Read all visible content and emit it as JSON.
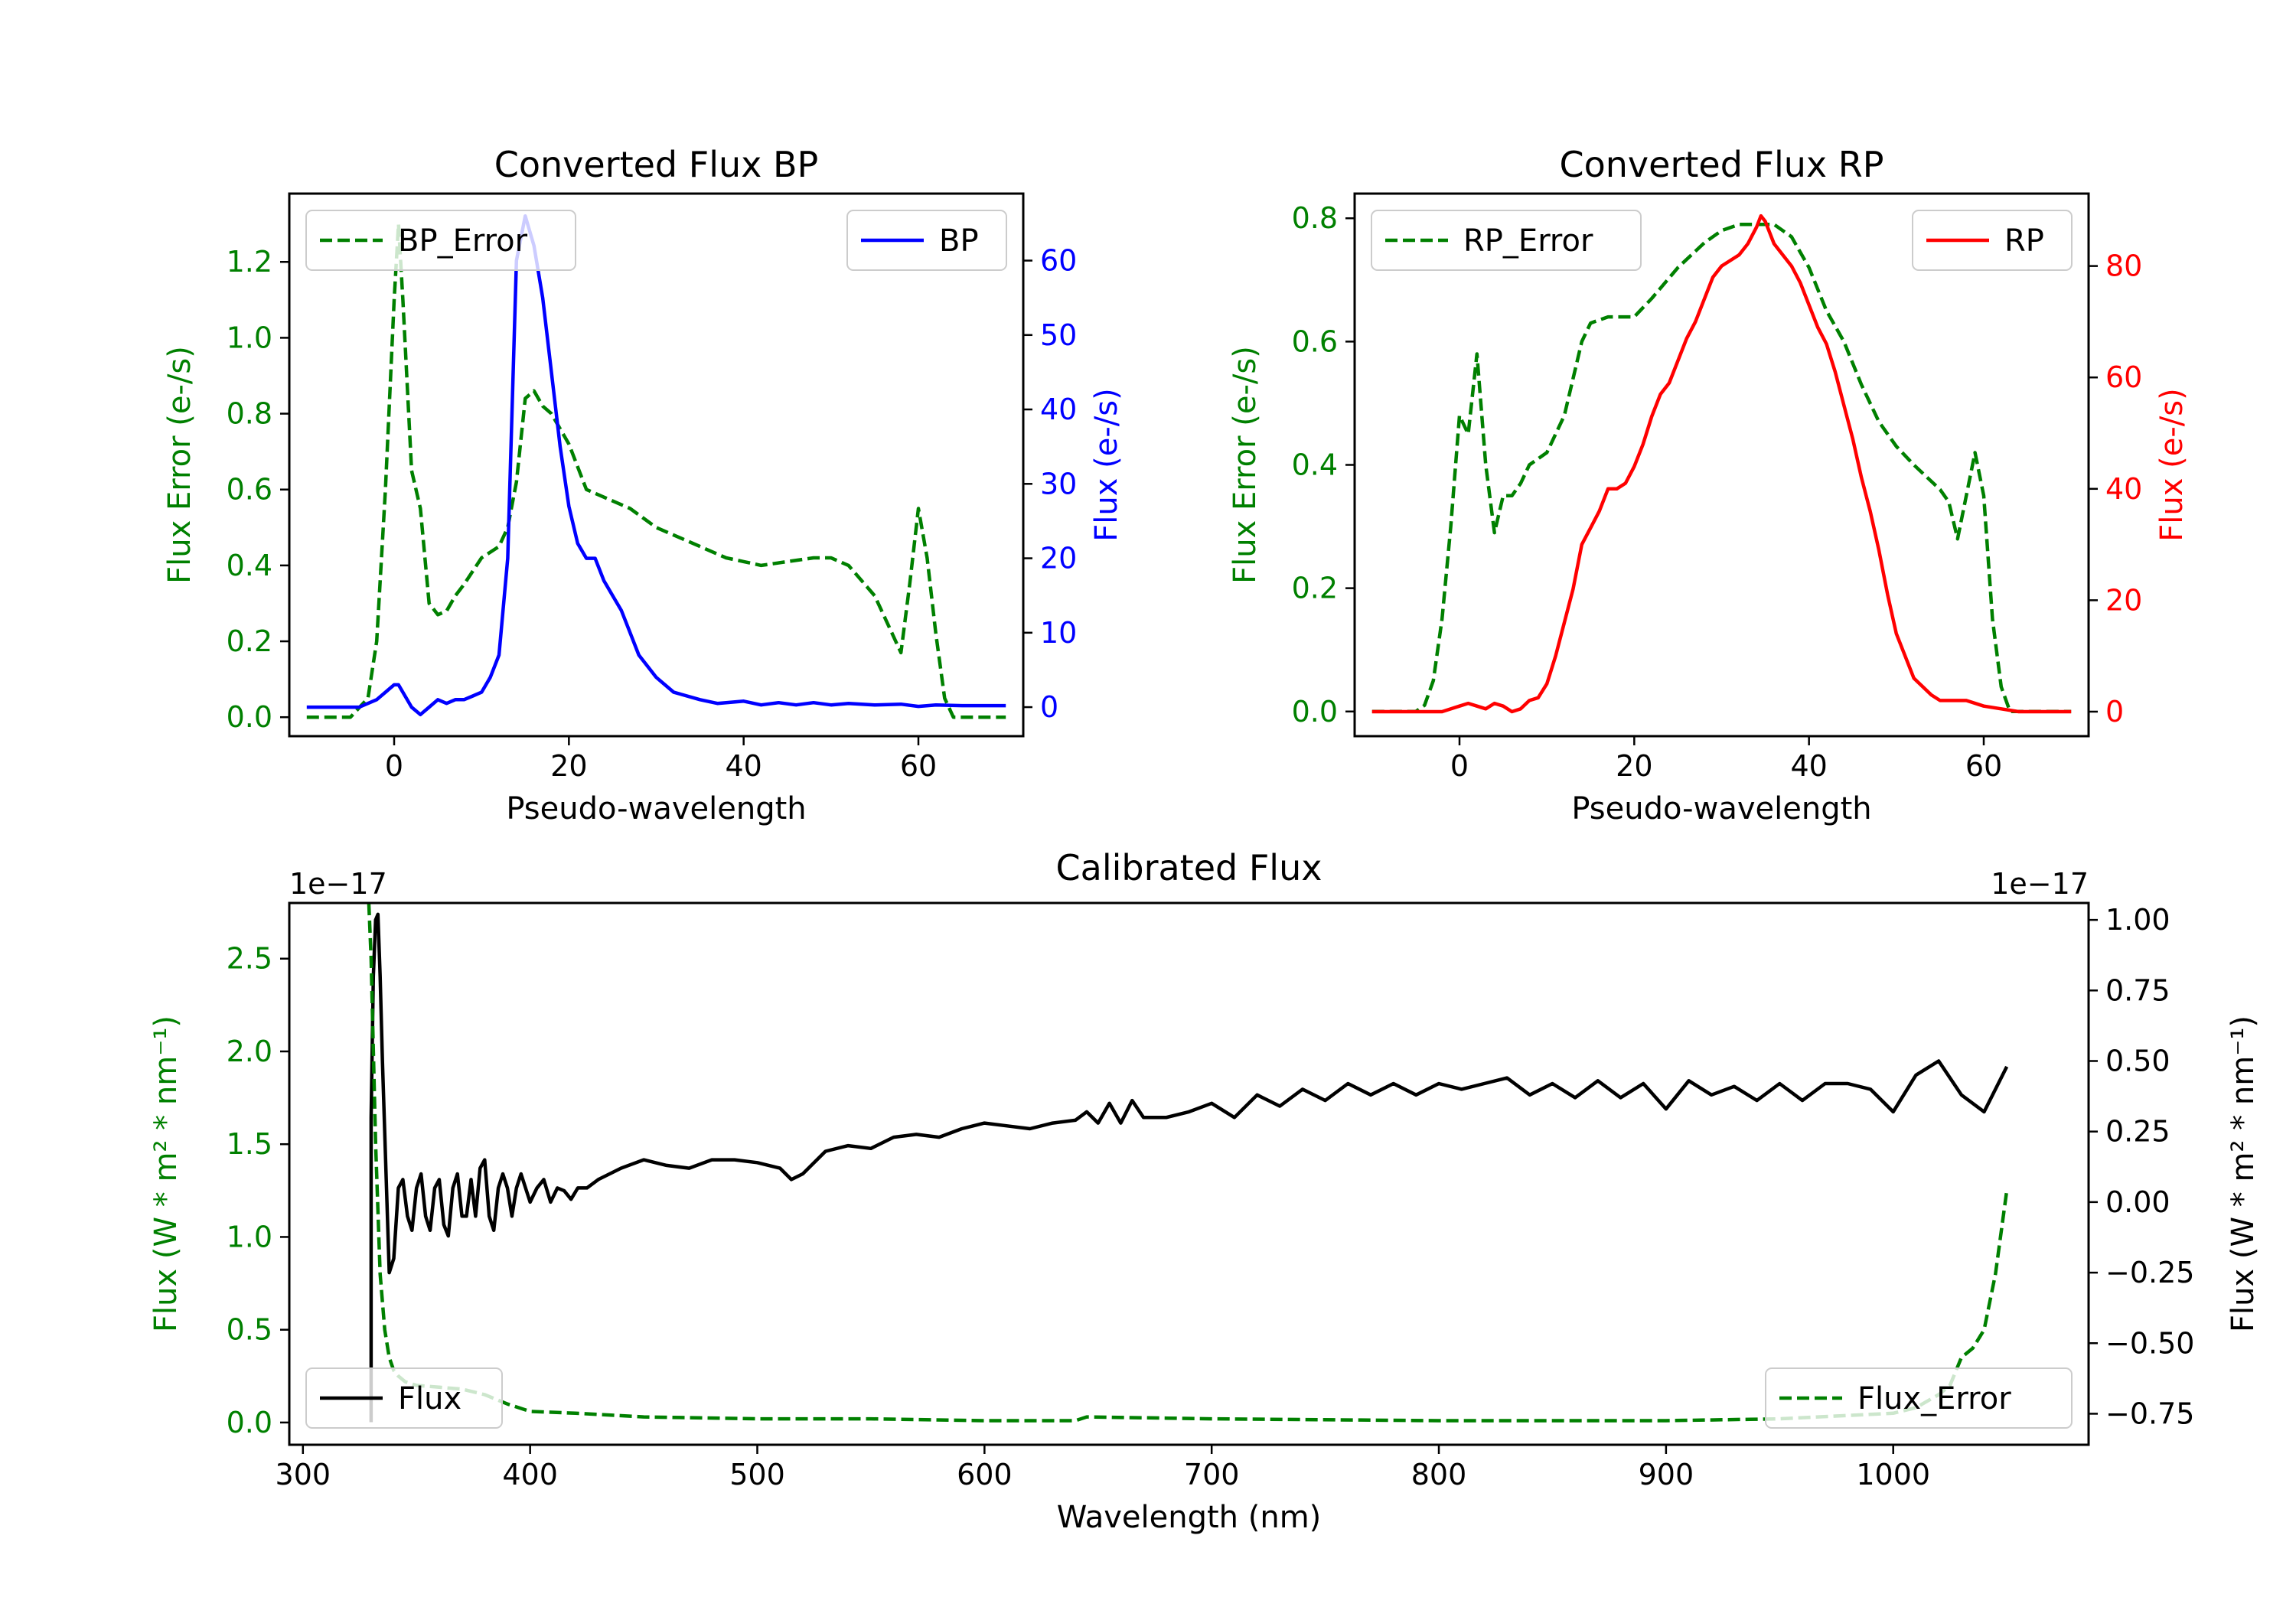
{
  "colors": {
    "green": "#008000",
    "blue": "#0000ff",
    "red": "#ff0000",
    "black": "#000000"
  },
  "chart_data": [
    {
      "id": "bp",
      "type": "line",
      "title": "Converted Flux BP",
      "xlabel": "Pseudo-wavelength",
      "ylabel_left": "Flux Error (e-/s)",
      "ylabel_right": "Flux (e-/s)",
      "xlim": [
        -12,
        72
      ],
      "ylim_left": [
        -0.05,
        1.38
      ],
      "ylim_right": [
        -3.9,
        69
      ],
      "xticks": [
        0,
        20,
        40,
        60
      ],
      "yticks_left": [
        0.0,
        0.2,
        0.4,
        0.6,
        0.8,
        1.0,
        1.2
      ],
      "yticks_right": [
        0,
        10,
        20,
        30,
        40,
        50,
        60
      ],
      "legend_left": "BP_Error",
      "legend_right": "BP",
      "series": [
        {
          "name": "BP_Error",
          "axis": "left",
          "color": "#008000",
          "dashed": true,
          "x": [
            -10,
            -5,
            -3,
            -2,
            -1,
            0,
            0.5,
            1,
            2,
            3,
            4,
            5,
            6,
            7,
            8,
            10,
            12,
            13,
            14,
            15,
            16,
            17,
            18,
            20,
            22,
            25,
            27,
            30,
            35,
            38,
            40,
            42,
            45,
            48,
            50,
            52,
            55,
            57,
            58,
            59,
            60,
            61,
            62,
            63,
            64,
            65,
            67,
            70
          ],
          "y": [
            0.0,
            0.0,
            0.05,
            0.2,
            0.6,
            1.1,
            1.3,
            1.1,
            0.65,
            0.55,
            0.3,
            0.27,
            0.28,
            0.32,
            0.35,
            0.42,
            0.45,
            0.5,
            0.62,
            0.84,
            0.86,
            0.82,
            0.8,
            0.72,
            0.6,
            0.57,
            0.55,
            0.5,
            0.45,
            0.42,
            0.41,
            0.4,
            0.41,
            0.42,
            0.42,
            0.4,
            0.32,
            0.22,
            0.17,
            0.35,
            0.55,
            0.42,
            0.22,
            0.05,
            0.0,
            0.0,
            0.0,
            0.0
          ]
        },
        {
          "name": "BP",
          "axis": "right",
          "color": "#0000ff",
          "dashed": false,
          "x": [
            -10,
            -4,
            -2,
            0,
            0.5,
            1,
            2,
            3,
            4,
            5,
            6,
            7,
            8,
            9,
            10,
            11,
            12,
            13,
            14,
            15,
            16,
            17,
            18,
            19,
            20,
            21,
            22,
            23,
            24,
            25,
            26,
            27,
            28,
            30,
            32,
            35,
            37,
            40,
            42,
            44,
            46,
            48,
            50,
            52,
            55,
            58,
            60,
            62,
            65,
            70
          ],
          "y": [
            0,
            0,
            1,
            3,
            3,
            2,
            0,
            -1,
            0,
            1,
            0.5,
            1,
            1,
            1.5,
            2,
            4,
            7,
            20,
            60,
            66,
            62,
            55,
            45,
            35,
            27,
            22,
            20,
            20,
            17,
            15,
            13,
            10,
            7,
            4,
            2,
            1,
            0.5,
            0.8,
            0.3,
            0.6,
            0.3,
            0.6,
            0.3,
            0.5,
            0.3,
            0.4,
            0.1,
            0.3,
            0.2,
            0.2
          ]
        }
      ]
    },
    {
      "id": "rp",
      "type": "line",
      "title": "Converted Flux RP",
      "xlabel": "Pseudo-wavelength",
      "ylabel_left": "Flux Error (e-/s)",
      "ylabel_right": "Flux (e-/s)",
      "xlim": [
        -12,
        72
      ],
      "ylim_left": [
        -0.04,
        0.84
      ],
      "ylim_right": [
        -4.4,
        93
      ],
      "xticks": [
        0,
        20,
        40,
        60
      ],
      "yticks_left": [
        0.0,
        0.2,
        0.4,
        0.6,
        0.8
      ],
      "yticks_right": [
        0,
        20,
        40,
        60,
        80
      ],
      "legend_left": "RP_Error",
      "legend_right": "RP",
      "series": [
        {
          "name": "RP_Error",
          "axis": "left",
          "color": "#008000",
          "dashed": true,
          "x": [
            -10,
            -5,
            -4,
            -3,
            -2,
            -1,
            0,
            1,
            2,
            3,
            4,
            5,
            6,
            7,
            8,
            10,
            12,
            14,
            15,
            17,
            20,
            22,
            25,
            28,
            30,
            32,
            34,
            36,
            38,
            40,
            42,
            44,
            46,
            48,
            50,
            52,
            55,
            56,
            57,
            58,
            59,
            60,
            61,
            62,
            63,
            64,
            70
          ],
          "y": [
            0.0,
            0.0,
            0.01,
            0.05,
            0.15,
            0.3,
            0.48,
            0.45,
            0.58,
            0.4,
            0.29,
            0.35,
            0.35,
            0.37,
            0.4,
            0.42,
            0.48,
            0.6,
            0.63,
            0.64,
            0.64,
            0.67,
            0.72,
            0.76,
            0.78,
            0.79,
            0.79,
            0.79,
            0.77,
            0.72,
            0.65,
            0.6,
            0.53,
            0.47,
            0.43,
            0.4,
            0.36,
            0.34,
            0.28,
            0.35,
            0.42,
            0.35,
            0.15,
            0.04,
            0.0,
            0.0,
            0.0
          ]
        },
        {
          "name": "RP",
          "axis": "right",
          "color": "#ff0000",
          "dashed": false,
          "x": [
            -10,
            -2,
            0,
            1,
            2,
            3,
            4,
            5,
            6,
            7,
            8,
            9,
            10,
            11,
            12,
            13,
            14,
            15,
            16,
            17,
            18,
            19,
            20,
            21,
            22,
            23,
            24,
            25,
            26,
            27,
            28,
            29,
            30,
            31,
            32,
            33,
            34,
            34.5,
            35,
            36,
            37,
            38,
            39,
            40,
            41,
            42,
            43,
            44,
            45,
            46,
            47,
            48,
            49,
            50,
            52,
            54,
            55,
            58,
            60,
            62,
            64,
            70
          ],
          "y": [
            0,
            0,
            1,
            1.5,
            1,
            0.5,
            1.5,
            1,
            0,
            0.5,
            2,
            2.5,
            5,
            10,
            16,
            22,
            30,
            33,
            36,
            40,
            40,
            41,
            44,
            48,
            53,
            57,
            59,
            63,
            67,
            70,
            74,
            78,
            80,
            81,
            82,
            84,
            87,
            89,
            88,
            84,
            82,
            80,
            77,
            73,
            69,
            66,
            61,
            55,
            49,
            42,
            36,
            29,
            21,
            14,
            6,
            3,
            2,
            2,
            1,
            0.5,
            0,
            0
          ]
        }
      ]
    },
    {
      "id": "cal",
      "type": "line",
      "title": "Calibrated Flux",
      "xlabel": "Wavelength (nm)",
      "ylabel_left": "Flux (W * m² * nm⁻¹)",
      "ylabel_right": "Flux (W * m² * nm⁻¹)",
      "offset_left": "1e−17",
      "offset_right": "1e−17",
      "xlim": [
        294,
        1086
      ],
      "ylim_left": [
        -0.12,
        2.8
      ],
      "ylim_right": [
        -0.86,
        1.06
      ],
      "xticks": [
        300,
        400,
        500,
        600,
        700,
        800,
        900,
        1000
      ],
      "yticks_left": [
        0.0,
        0.5,
        1.0,
        1.5,
        2.0,
        2.5
      ],
      "yticks_right": [
        -0.75,
        -0.5,
        -0.25,
        0.0,
        0.25,
        0.5,
        0.75,
        1.0
      ],
      "ytick_labels_right": [
        "−0.75",
        "−0.50",
        "−0.25",
        "0.00",
        "0.25",
        "0.50",
        "0.75",
        "1.00"
      ],
      "legend_left": "Flux",
      "legend_right": "Flux_Error",
      "series": [
        {
          "name": "Flux",
          "axis": "right",
          "color": "#000000",
          "dashed": false,
          "x": [
            330,
            330,
            331,
            332,
            333,
            334,
            335,
            337,
            338,
            340,
            342,
            344,
            346,
            348,
            350,
            352,
            354,
            356,
            358,
            360,
            362,
            364,
            366,
            368,
            370,
            372,
            374,
            376,
            378,
            380,
            382,
            384,
            386,
            388,
            390,
            392,
            394,
            396,
            398,
            400,
            403,
            406,
            409,
            412,
            415,
            418,
            421,
            425,
            430,
            440,
            450,
            460,
            470,
            480,
            490,
            500,
            510,
            515,
            520,
            530,
            540,
            550,
            560,
            570,
            580,
            590,
            600,
            610,
            620,
            630,
            640,
            645,
            650,
            655,
            660,
            665,
            670,
            680,
            690,
            700,
            710,
            720,
            730,
            740,
            750,
            760,
            770,
            780,
            790,
            800,
            810,
            820,
            830,
            840,
            850,
            860,
            870,
            880,
            890,
            900,
            910,
            920,
            930,
            940,
            950,
            960,
            970,
            980,
            990,
            1000,
            1010,
            1020,
            1030,
            1040,
            1050
          ],
          "y": [
            -0.78,
            0.3,
            0.8,
            1.0,
            1.02,
            0.8,
            0.5,
            0.0,
            -0.25,
            -0.2,
            0.05,
            0.08,
            -0.05,
            -0.1,
            0.05,
            0.1,
            -0.05,
            -0.1,
            0.05,
            0.08,
            -0.08,
            -0.12,
            0.05,
            0.1,
            -0.05,
            -0.05,
            0.08,
            -0.05,
            0.12,
            0.15,
            -0.05,
            -0.1,
            0.05,
            0.1,
            0.05,
            -0.05,
            0.05,
            0.1,
            0.05,
            0.0,
            0.05,
            0.08,
            0.0,
            0.05,
            0.04,
            0.01,
            0.05,
            0.05,
            0.08,
            0.12,
            0.15,
            0.13,
            0.12,
            0.15,
            0.15,
            0.14,
            0.12,
            0.08,
            0.1,
            0.18,
            0.2,
            0.19,
            0.23,
            0.24,
            0.23,
            0.26,
            0.28,
            0.27,
            0.26,
            0.28,
            0.29,
            0.32,
            0.28,
            0.35,
            0.28,
            0.36,
            0.3,
            0.3,
            0.32,
            0.35,
            0.3,
            0.38,
            0.34,
            0.4,
            0.36,
            0.42,
            0.38,
            0.42,
            0.38,
            0.42,
            0.4,
            0.42,
            0.44,
            0.38,
            0.42,
            0.37,
            0.43,
            0.37,
            0.42,
            0.33,
            0.43,
            0.38,
            0.41,
            0.36,
            0.42,
            0.36,
            0.42,
            0.42,
            0.4,
            0.32,
            0.45,
            0.5,
            0.38,
            0.32,
            0.48
          ]
        },
        {
          "name": "Flux_Error",
          "axis": "left",
          "color": "#008000",
          "dashed": true,
          "x": [
            329,
            330,
            332,
            334,
            336,
            338,
            340,
            342,
            345,
            350,
            360,
            370,
            380,
            390,
            400,
            420,
            450,
            500,
            550,
            600,
            640,
            645,
            700,
            800,
            900,
            950,
            1000,
            1010,
            1020,
            1025,
            1030,
            1035,
            1040,
            1045,
            1050
          ],
          "y": [
            2.8,
            2.5,
            1.5,
            0.8,
            0.5,
            0.35,
            0.28,
            0.25,
            0.22,
            0.2,
            0.19,
            0.18,
            0.15,
            0.1,
            0.06,
            0.05,
            0.03,
            0.02,
            0.02,
            0.01,
            0.01,
            0.03,
            0.02,
            0.01,
            0.01,
            0.02,
            0.05,
            0.08,
            0.15,
            0.2,
            0.35,
            0.4,
            0.5,
            0.8,
            1.25
          ]
        }
      ]
    }
  ]
}
